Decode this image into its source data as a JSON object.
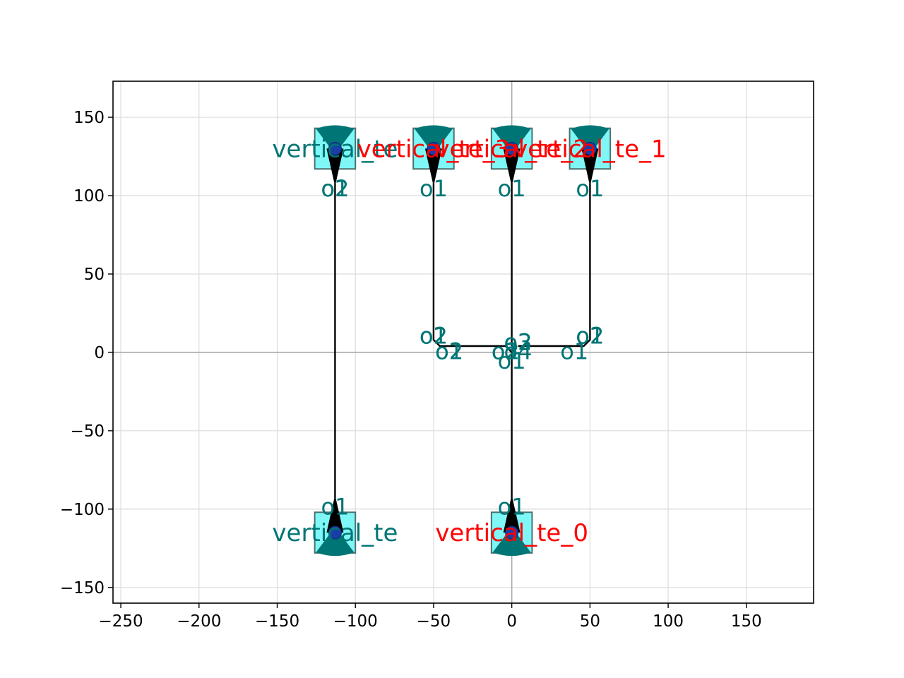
{
  "chart_data": {
    "type": "scatter",
    "title": "",
    "xlabel": "",
    "ylabel": "",
    "xlim": [
      -255,
      193
    ],
    "ylim": [
      -160,
      173
    ],
    "grid": true,
    "x_ticks": [
      -250,
      -200,
      -150,
      -100,
      -50,
      0,
      50,
      100,
      150
    ],
    "y_ticks": [
      -150,
      -100,
      -50,
      0,
      50,
      100,
      150
    ],
    "x_tick_labels": [
      "−250",
      "−200",
      "−150",
      "−100",
      "−50",
      "0",
      "50",
      "100",
      "150"
    ],
    "y_tick_labels": [
      "−150",
      "−100",
      "−50",
      "0",
      "50",
      "100",
      "150"
    ],
    "colors": {
      "component_fill": "#7ff7f7",
      "component_edge": "#4d7070",
      "coupler": "#007575",
      "port_dot": "#1a3ea8",
      "route": "#000000",
      "label_teal": "#007575",
      "label_red": "#ff0000",
      "axis_line": "#aaaaaa",
      "grid_line": "#dcdcdc"
    },
    "components": [
      {
        "name": "vertical_te",
        "x": -113,
        "y": 130,
        "facing": "up",
        "label_x": -113,
        "label_color": "label_teal"
      },
      {
        "name": "vertical_te_1",
        "x": 50,
        "y": 130,
        "facing": "up",
        "label_x": 50,
        "label_color": "label_red"
      },
      {
        "name": "vertical_te_2",
        "x": 0,
        "y": 130,
        "facing": "up",
        "label_x": 0,
        "label_color": "label_red"
      },
      {
        "name": "vertical_te_3",
        "x": -50,
        "y": 130,
        "facing": "up",
        "label_x": -50,
        "label_color": "label_red"
      },
      {
        "name": "vertical_te",
        "x": -113,
        "y": -115,
        "facing": "down",
        "label_x": -113,
        "label_color": "label_teal"
      },
      {
        "name": "vertical_te_0",
        "x": 0,
        "y": -115,
        "facing": "down",
        "label_x": 0,
        "label_color": "label_red"
      }
    ],
    "routes": [
      {
        "points": [
          [
            -113,
            108
          ],
          [
            -113,
            -93
          ]
        ]
      },
      {
        "points": [
          [
            -50,
            108
          ],
          [
            -50,
            8
          ],
          [
            -46,
            4
          ],
          [
            -4,
            4
          ],
          [
            0,
            0
          ],
          [
            0,
            -93
          ]
        ]
      },
      {
        "points": [
          [
            0,
            108
          ],
          [
            0,
            4
          ]
        ]
      },
      {
        "points": [
          [
            50,
            108
          ],
          [
            50,
            8
          ],
          [
            46,
            4
          ],
          [
            4,
            4
          ]
        ]
      }
    ],
    "port_labels": [
      {
        "text": "o2",
        "x": -113,
        "y": 105
      },
      {
        "text": "o1",
        "x": -113,
        "y": 105
      },
      {
        "text": "o1",
        "x": -50,
        "y": 105
      },
      {
        "text": "o1",
        "x": 0,
        "y": 105
      },
      {
        "text": "o1",
        "x": 50,
        "y": 105
      },
      {
        "text": "o2",
        "x": -50,
        "y": 11
      },
      {
        "text": "o1",
        "x": -50,
        "y": 11
      },
      {
        "text": "o2",
        "x": 50,
        "y": 11
      },
      {
        "text": "o1",
        "x": 50,
        "y": 11
      },
      {
        "text": "o1",
        "x": -40,
        "y": 1
      },
      {
        "text": "o2",
        "x": -40,
        "y": 1
      },
      {
        "text": "o1",
        "x": 40,
        "y": 1
      },
      {
        "text": "o2",
        "x": 4,
        "y": 7
      },
      {
        "text": "o3",
        "x": 4,
        "y": 7
      },
      {
        "text": "o4",
        "x": 4,
        "y": 1
      },
      {
        "text": "o1",
        "x": -4,
        "y": 1
      },
      {
        "text": "o2",
        "x": -4,
        "y": 1
      },
      {
        "text": "o1",
        "x": 0,
        "y": -5
      },
      {
        "text": "o1",
        "x": -113,
        "y": -98
      },
      {
        "text": "o1",
        "x": 0,
        "y": -98
      }
    ]
  }
}
